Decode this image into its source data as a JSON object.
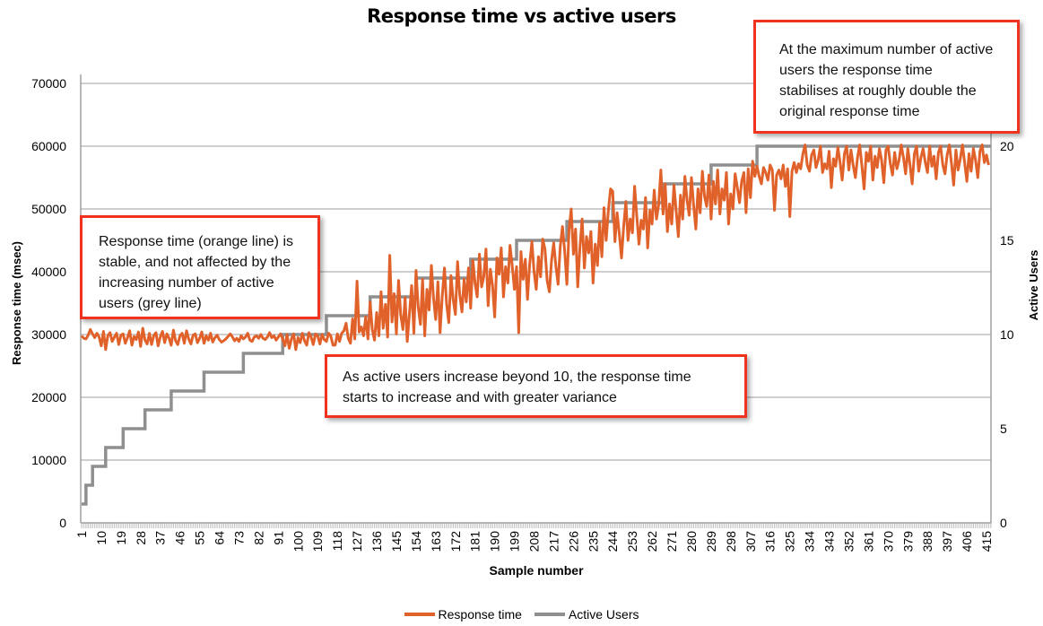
{
  "chart_data": {
    "type": "line",
    "title": "Response time vs active users",
    "xlabel": "Sample number",
    "ylabel": "Response time (msec)",
    "y2label": "Active Users",
    "xlim": [
      1,
      417
    ],
    "ylim": [
      0,
      70000
    ],
    "y2lim": [
      0,
      20
    ],
    "x_ticks": [
      1,
      10,
      19,
      28,
      37,
      46,
      55,
      64,
      73,
      82,
      91,
      100,
      109,
      118,
      127,
      136,
      145,
      154,
      163,
      172,
      181,
      190,
      199,
      208,
      217,
      226,
      235,
      244,
      253,
      262,
      271,
      280,
      289,
      298,
      307,
      316,
      325,
      334,
      343,
      352,
      361,
      370,
      379,
      388,
      397,
      406,
      415
    ],
    "y_ticks": [
      0,
      10000,
      20000,
      30000,
      40000,
      50000,
      60000,
      70000
    ],
    "y2_ticks": [
      0,
      5,
      10,
      15,
      20
    ],
    "grid": true,
    "legend_position": "bottom",
    "colors": {
      "response_time": "#e0622a",
      "active_users": "#8f8f8f",
      "annotation_border": "#f0321e"
    },
    "series": [
      {
        "name": "Response time",
        "axis": "left",
        "values": [
          29800,
          29400,
          29300,
          29900,
          30800,
          30100,
          29500,
          30200,
          29600,
          28200,
          30500,
          27600,
          29800,
          30300,
          28900,
          29600,
          30200,
          28400,
          29900,
          30100,
          28600,
          29500,
          30600,
          28300,
          29700,
          29200,
          30400,
          28100,
          31000,
          29100,
          28500,
          30200,
          28400,
          29800,
          30300,
          28200,
          29600,
          30500,
          28700,
          30100,
          29400,
          28300,
          30700,
          29000,
          28400,
          29800,
          30200,
          28600,
          30600,
          29300,
          28500,
          29900,
          30100,
          28700,
          29400,
          30400,
          28600,
          29800,
          29100,
          30200,
          28800,
          29500,
          29900,
          29200,
          28800,
          29000,
          29300,
          29700,
          30100,
          29600,
          29000,
          29400,
          28900,
          29800,
          29300,
          29600,
          30200,
          29100,
          28900,
          29600,
          29800,
          29400,
          30000,
          29400,
          29200,
          29600,
          30300,
          29500,
          29800,
          29100,
          29600,
          30100,
          29300,
          28200,
          30000,
          27800,
          29300,
          30100,
          27600,
          29500,
          28700,
          30200,
          29000,
          28300,
          30300,
          29600,
          28400,
          30100,
          29800,
          28500,
          30000,
          29200,
          28900,
          30200,
          29800,
          28300,
          28300,
          30100,
          28900,
          30200,
          30600,
          31800,
          29400,
          28600,
          32500,
          29300,
          38500,
          30400,
          31200,
          29800,
          32800,
          29300,
          35200,
          30800,
          29100,
          33500,
          29800,
          36800,
          31000,
          34800,
          29600,
          42600,
          32000,
          36500,
          30100,
          38600,
          33200,
          30800,
          35900,
          28900,
          33400,
          37800,
          30200,
          40200,
          34400,
          31600,
          38800,
          29800,
          37200,
          33900,
          41000,
          35800,
          32400,
          38400,
          30300,
          36000,
          40600,
          34800,
          31900,
          39400,
          35600,
          33200,
          41600,
          36400,
          33600,
          38800,
          35200,
          40600,
          34200,
          41800,
          38200,
          36000,
          42800,
          37600,
          39200,
          43600,
          34600,
          40400,
          37800,
          32800,
          42200,
          39600,
          43800,
          36000,
          40800,
          38200,
          44200,
          41000,
          37200,
          40800,
          30300,
          43200,
          38800,
          42000,
          35600,
          41200,
          44800,
          40000,
          37200,
          42400,
          39200,
          45200,
          43600,
          38600,
          36800,
          41800,
          44600,
          40800,
          38000,
          44000,
          47200,
          43400,
          38000,
          46600,
          50000,
          42800,
          46800,
          37600,
          44000,
          48400,
          40600,
          45600,
          43000,
          46400,
          38200,
          44400,
          41000,
          47800,
          42400,
          50200,
          45000,
          49800,
          53200,
          52800,
          44800,
          49400,
          46000,
          42200,
          47200,
          51200,
          45000,
          48400,
          46200,
          53600,
          49000,
          44400,
          48200,
          46800,
          51800,
          43800,
          49800,
          47600,
          53000,
          48400,
          50600,
          56200,
          49200,
          54000,
          46400,
          50800,
          47600,
          53800,
          49800,
          45600,
          52200,
          48400,
          55200,
          51400,
          49000,
          55000,
          50600,
          46800,
          53200,
          49400,
          56000,
          52000,
          50400,
          55400,
          48400,
          54400,
          50800,
          56200,
          49200,
          53200,
          51400,
          55800,
          47600,
          52400,
          50000,
          55600,
          53400,
          51000,
          54400,
          55800,
          49400,
          56400,
          51800,
          57600,
          55200,
          56800,
          55200,
          54000,
          56600,
          55800,
          54600,
          57000,
          56200,
          49800,
          55400,
          56200,
          54800,
          57000,
          53600,
          56400,
          48800,
          56000,
          57400,
          55800,
          57200,
          56400,
          58800,
          60200,
          57000,
          56000,
          58600,
          59400,
          56600,
          57800,
          60000,
          55800,
          57200,
          56400,
          59200,
          53400,
          58000,
          56800,
          59800,
          57400,
          54600,
          58800,
          60000,
          56200,
          59400,
          57000,
          55000,
          58200,
          60200,
          56800,
          53200,
          59000,
          57600,
          60000,
          54600,
          58400,
          56600,
          59600,
          57800,
          54200,
          59400,
          60000,
          57200,
          55400,
          59000,
          56400,
          57800,
          60200,
          58200,
          55600,
          59600,
          57000,
          54000,
          58800,
          60000,
          56000,
          58200,
          59600,
          57400,
          55800,
          60000,
          56800,
          58400,
          54800,
          59000,
          60000,
          57000,
          55600,
          58600,
          60200,
          57200,
          53800,
          59400,
          56200,
          58000,
          60200,
          57400,
          54400,
          58800,
          56000,
          59600,
          57800,
          55000,
          59200,
          60200,
          57400,
          58600,
          57000
        ]
      },
      {
        "name": "Active Users",
        "axis": "right",
        "steps": [
          [
            1,
            1
          ],
          [
            3,
            2
          ],
          [
            6,
            3
          ],
          [
            12,
            4
          ],
          [
            20,
            5
          ],
          [
            30,
            6
          ],
          [
            42,
            7
          ],
          [
            57,
            8
          ],
          [
            75,
            9
          ],
          [
            93,
            10
          ],
          [
            113,
            11
          ],
          [
            133,
            12
          ],
          [
            154,
            13
          ],
          [
            179,
            14
          ],
          [
            200,
            15
          ],
          [
            223,
            16
          ],
          [
            244,
            17
          ],
          [
            267,
            18
          ],
          [
            289,
            19
          ],
          [
            310,
            20
          ]
        ]
      }
    ],
    "annotations": [
      "Response time (orange line) is stable, and not affected by the increasing number of active users (grey line)",
      "As active users increase beyond 10, the response time starts to increase and with greater variance",
      "At the maximum number of active users the response time stabilises at roughly double the original response time"
    ]
  }
}
